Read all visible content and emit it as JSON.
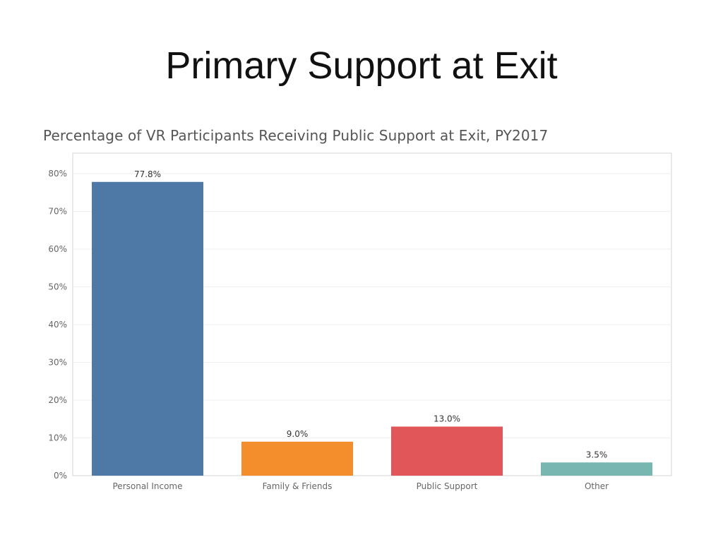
{
  "slide": {
    "title": "Primary Support at Exit"
  },
  "chart_data": {
    "type": "bar",
    "title": "Percentage of VR Participants Receiving Public Support at Exit, PY2017",
    "xlabel": "",
    "ylabel": "",
    "categories": [
      "Personal Income",
      "Family & Friends",
      "Public Support",
      "Other"
    ],
    "values": [
      77.8,
      9.0,
      13.0,
      3.5
    ],
    "value_labels": [
      "77.8%",
      "9.0%",
      "13.0%",
      "3.5%"
    ],
    "colors": [
      "#4e79a7",
      "#f28e2b",
      "#e15759",
      "#76b7b2"
    ],
    "ylim": [
      0,
      80
    ],
    "yticks": [
      0,
      10,
      20,
      30,
      40,
      50,
      60,
      70,
      80
    ],
    "ytick_labels": [
      "0%",
      "10%",
      "20%",
      "30%",
      "40%",
      "50%",
      "60%",
      "70%",
      "80%"
    ],
    "grid": true,
    "legend": "none"
  }
}
